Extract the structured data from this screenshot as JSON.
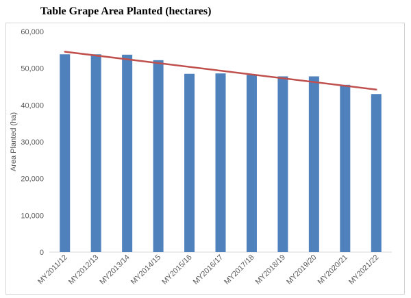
{
  "chart_data": {
    "type": "bar",
    "title": "Table Grape Area Planted (hectares)",
    "xlabel": "",
    "ylabel": "Area Planted (ha)",
    "categories": [
      "MY2011/12",
      "MY2012/13",
      "MY2013/14",
      "MY2014/15",
      "MY2015/16",
      "MY2016/17",
      "MY2017/18",
      "MY2018/19",
      "MY2019/20",
      "MY2020/21",
      "MY2021/22"
    ],
    "series": [
      {
        "values": [
          53800,
          53800,
          53700,
          52200,
          48500,
          48600,
          48200,
          47800,
          47800,
          45500,
          43000
        ],
        "color": "#4f81bd"
      }
    ],
    "trendline": {
      "type": "linear",
      "start": 54500,
      "end": 44200,
      "color": "#c0504d"
    },
    "ylim": [
      0,
      60000
    ],
    "yticks": [
      0,
      10000,
      20000,
      30000,
      40000,
      50000,
      60000
    ],
    "ytick_labels": [
      "0",
      "10,000",
      "20,000",
      "30,000",
      "40,000",
      "50,000",
      "60,000"
    ],
    "grid": false,
    "legend": "none"
  }
}
